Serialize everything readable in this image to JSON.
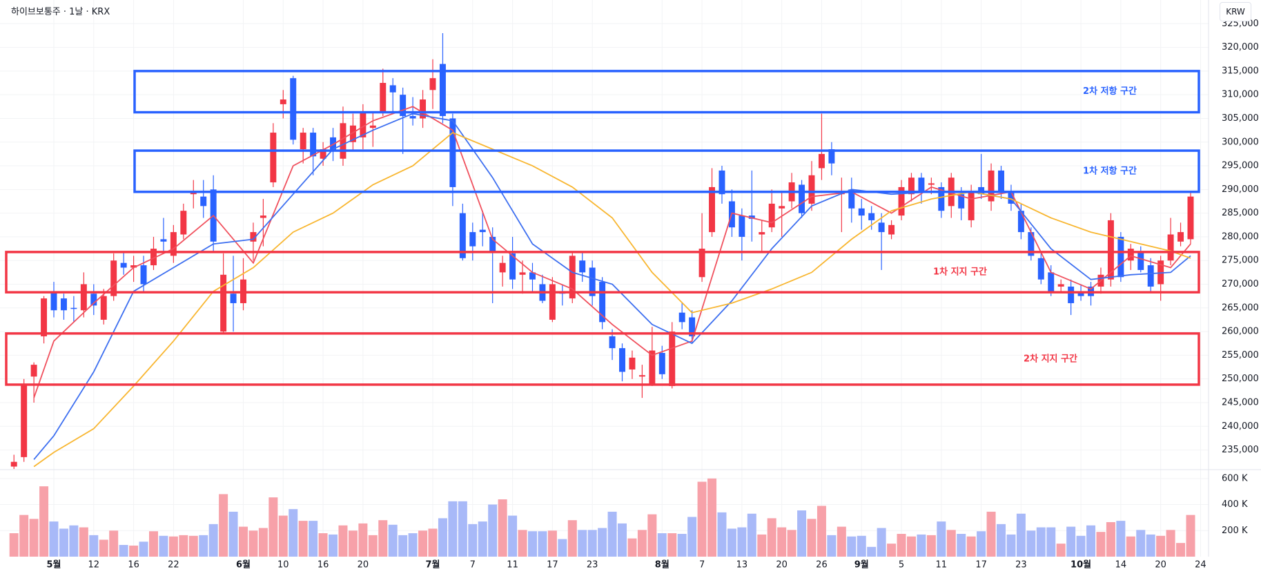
{
  "header": {
    "symbol": "하이브보통주 · 1날 · KRX",
    "currency": "KRW"
  },
  "chart_data": {
    "type": "candlestick",
    "open": [
      231500,
      233500,
      250500,
      259000,
      268500,
      267000,
      265000,
      264500,
      268000,
      262500,
      267500,
      274500,
      273500,
      274000,
      274000,
      279500,
      276000,
      280500,
      289000,
      288500,
      290000,
      260000,
      268000,
      266000,
      279000,
      284000,
      291500,
      308000,
      313500,
      298500,
      302000,
      296500,
      301000,
      296500,
      300000,
      301000,
      303000,
      306500,
      312000,
      310000,
      305500,
      305000,
      311000,
      316500,
      305000,
      285000,
      281000,
      281500,
      280000,
      272500,
      276500,
      272000,
      272500,
      270000,
      262500,
      268500,
      267000,
      275000,
      273500,
      270500,
      259000,
      256500,
      252000,
      250500,
      249000,
      255500,
      248500,
      264000,
      263000,
      271500,
      281000,
      294000,
      287500,
      284500,
      284500,
      280500,
      282000,
      286000,
      287500,
      291000,
      287000,
      294500,
      298500,
      289000,
      290000,
      286000,
      285000,
      283000,
      280500,
      284500,
      289000,
      292500,
      291000,
      290500,
      286500,
      289000,
      283500,
      290500,
      287500,
      294000,
      289500,
      285500,
      281000,
      275500,
      272500,
      269500,
      269500,
      268500,
      269500,
      269500,
      271000,
      280000,
      275000,
      277000,
      274000,
      270000,
      275000,
      279000,
      279500
    ],
    "high": [
      234000,
      250000,
      253500,
      267500,
      270500,
      268000,
      267500,
      272500,
      270000,
      269000,
      276500,
      277000,
      276000,
      276000,
      280000,
      284000,
      282500,
      287000,
      292000,
      292000,
      293000,
      276500,
      276000,
      275500,
      283000,
      288000,
      304000,
      311000,
      314000,
      303000,
      303000,
      300000,
      303000,
      307500,
      306000,
      308000,
      306500,
      315500,
      313500,
      311500,
      309500,
      311000,
      317500,
      323000,
      306000,
      287000,
      283000,
      285500,
      282000,
      276000,
      280000,
      275000,
      274500,
      272000,
      271500,
      270000,
      277000,
      277000,
      275000,
      271500,
      260500,
      257500,
      256000,
      253000,
      261000,
      257000,
      262000,
      266000,
      264500,
      285000,
      294500,
      295000,
      290000,
      286000,
      294000,
      283500,
      290000,
      289500,
      293500,
      292000,
      296000,
      306000,
      300000,
      292500,
      292500,
      288000,
      286500,
      285000,
      283500,
      292000,
      293500,
      293500,
      292500,
      291500,
      293500,
      290500,
      291000,
      297500,
      295500,
      295000,
      291000,
      287000,
      282000,
      276500,
      274000,
      271000,
      271000,
      270000,
      270500,
      273500,
      285000,
      281000,
      278500,
      278000,
      275500,
      276000,
      284000,
      283000,
      289500
    ],
    "low": [
      231000,
      232500,
      245000,
      257500,
      263000,
      262500,
      262000,
      263000,
      263500,
      261500,
      266500,
      272000,
      270500,
      268500,
      273000,
      277000,
      274500,
      279500,
      286000,
      284000,
      277000,
      259500,
      260000,
      264500,
      275000,
      278000,
      290500,
      305000,
      299500,
      295500,
      293000,
      295000,
      296000,
      295000,
      298000,
      298500,
      299000,
      305500,
      306500,
      297500,
      303500,
      303000,
      307000,
      304000,
      286500,
      275000,
      275000,
      278000,
      266000,
      269500,
      269000,
      268000,
      268500,
      266000,
      262000,
      265500,
      266000,
      270500,
      265500,
      260500,
      254000,
      249500,
      250000,
      246000,
      248500,
      250000,
      248000,
      260500,
      257500,
      270500,
      280000,
      287000,
      280000,
      275000,
      279000,
      277000,
      281000,
      280000,
      286000,
      284000,
      285500,
      292000,
      293000,
      281000,
      283000,
      281500,
      281500,
      273000,
      279500,
      283500,
      287500,
      287000,
      289000,
      284000,
      284000,
      283500,
      282000,
      288000,
      285500,
      288000,
      285500,
      279500,
      275000,
      270000,
      267500,
      268500,
      263500,
      266500,
      265500,
      268000,
      269500,
      270500,
      273000,
      272500,
      268500,
      266500,
      274000,
      278000,
      278500
    ],
    "close": [
      232500,
      249000,
      253000,
      267000,
      264500,
      264500,
      264800,
      270000,
      265500,
      267500,
      275000,
      273500,
      274000,
      270000,
      277500,
      279000,
      281000,
      285500,
      289500,
      286500,
      279000,
      272000,
      266000,
      271000,
      281000,
      284500,
      302000,
      309000,
      300500,
      302000,
      297000,
      298500,
      298000,
      304000,
      303500,
      306500,
      303500,
      312500,
      310500,
      305500,
      305000,
      309000,
      313500,
      305500,
      290500,
      275500,
      278000,
      281000,
      277000,
      274500,
      271000,
      272500,
      271000,
      266500,
      270000,
      268000,
      276000,
      272500,
      267500,
      262000,
      256500,
      251500,
      254500,
      250800,
      256000,
      251000,
      260000,
      262000,
      259000,
      277500,
      290500,
      289000,
      282000,
      280000,
      283800,
      281000,
      287000,
      286500,
      291500,
      285000,
      293000,
      297500,
      295500,
      289300,
      286000,
      284500,
      283500,
      281000,
      282500,
      290500,
      292500,
      289500,
      291300,
      285500,
      292500,
      286000,
      289500,
      289000,
      294000,
      289500,
      287000,
      281000,
      276000,
      271000,
      268500,
      270000,
      266000,
      267500,
      267500,
      272000,
      283500,
      271500,
      277500,
      273000,
      269500,
      275000,
      280500,
      281000,
      288500
    ],
    "volume": [
      180000,
      320000,
      290000,
      540000,
      270000,
      215000,
      240000,
      225000,
      165000,
      130000,
      200000,
      90000,
      85000,
      115000,
      195000,
      160000,
      155000,
      165000,
      160000,
      165000,
      250000,
      480000,
      345000,
      230000,
      200000,
      220000,
      455000,
      315000,
      365000,
      275000,
      275000,
      180000,
      170000,
      240000,
      200000,
      255000,
      165000,
      280000,
      245000,
      165000,
      180000,
      200000,
      215000,
      295000,
      425000,
      425000,
      250000,
      270000,
      400000,
      440000,
      315000,
      205000,
      195000,
      195000,
      200000,
      135000,
      280000,
      205000,
      205000,
      220000,
      345000,
      255000,
      140000,
      205000,
      325000,
      180000,
      180000,
      175000,
      305000,
      575000,
      600000,
      340000,
      215000,
      225000,
      330000,
      170000,
      295000,
      225000,
      205000,
      355000,
      290000,
      390000,
      165000,
      230000,
      155000,
      160000,
      75000,
      220000,
      100000,
      175000,
      155000,
      170000,
      165000,
      270000,
      205000,
      175000,
      155000,
      195000,
      345000,
      250000,
      170000,
      330000,
      200000,
      225000,
      225000,
      100000,
      230000,
      160000,
      240000,
      190000,
      265000,
      275000,
      155000,
      205000,
      170000,
      160000,
      205000,
      105000,
      320000
    ],
    "up_color": "#f23645",
    "down_color": "#2962ff",
    "up_volume_color": "#f7a1a9",
    "down_volume_color": "#a8b9f8",
    "lines": [
      {
        "color": "#f0505d",
        "x": [
          2,
          4,
          8,
          12,
          16,
          20,
          24,
          28,
          32,
          36,
          40,
          44,
          48,
          52,
          56,
          60,
          64,
          68,
          72,
          76,
          80,
          84,
          88,
          92,
          96,
          100,
          104,
          108,
          112,
          116,
          118
        ],
        "values": [
          246000,
          258000,
          266000,
          273500,
          277500,
          284500,
          274500,
          295000,
          299500,
          304500,
          307500,
          302500,
          279500,
          272500,
          269000,
          261500,
          255000,
          258000,
          285000,
          283000,
          288500,
          289500,
          285000,
          290500,
          288000,
          289500,
          272500,
          269000,
          276000,
          273500,
          278500
        ]
      },
      {
        "color": "#3d6ff0",
        "x": [
          2,
          4,
          8,
          12,
          16,
          20,
          24,
          28,
          32,
          36,
          40,
          44,
          48,
          52,
          56,
          60,
          64,
          68,
          72,
          76,
          80,
          84,
          88,
          92,
          96,
          100,
          104,
          108,
          112,
          116,
          118
        ],
        "values": [
          233000,
          238000,
          251500,
          268500,
          273500,
          278500,
          279500,
          289000,
          298500,
          302500,
          306000,
          304500,
          292500,
          278500,
          272500,
          270000,
          261500,
          257500,
          266500,
          277500,
          286500,
          290000,
          289000,
          289500,
          289500,
          288000,
          277500,
          271000,
          272000,
          272500,
          276000
        ]
      },
      {
        "color": "#f8b630",
        "x": [
          2,
          4,
          8,
          12,
          16,
          20,
          24,
          28,
          32,
          36,
          40,
          44,
          48,
          52,
          56,
          60,
          64,
          68,
          72,
          76,
          80,
          84,
          88,
          92,
          96,
          100,
          104,
          108,
          112,
          116,
          118
        ],
        "values": [
          231500,
          234500,
          239500,
          248500,
          258000,
          268500,
          273500,
          281000,
          285000,
          291000,
          295000,
          302000,
          298500,
          295000,
          290500,
          284000,
          272500,
          264000,
          266000,
          269000,
          272500,
          279500,
          285500,
          288000,
          289500,
          288000,
          284000,
          281000,
          279000,
          277000,
          275500
        ]
      }
    ],
    "zones": [
      {
        "label": "2차 저항 구간",
        "top": 315000,
        "bottom": 306300,
        "color": "#2962ff"
      },
      {
        "label": "1차 저항 구간",
        "top": 298200,
        "bottom": 289500,
        "color": "#2962ff"
      },
      {
        "label": "1차 지지 구간",
        "top": 276800,
        "bottom": 268300,
        "color": "#f23645"
      },
      {
        "label": "2차 지지 구간",
        "top": 259600,
        "bottom": 248800,
        "color": "#f23645"
      }
    ],
    "xlim": [
      -1.4,
      119.8
    ],
    "xticks": [
      {
        "value": 4,
        "label": "5월"
      },
      {
        "value": 8,
        "label": "12"
      },
      {
        "value": 12,
        "label": "16"
      },
      {
        "value": 16,
        "label": "22"
      },
      {
        "value": 23,
        "label": "6월"
      },
      {
        "value": 27,
        "label": "10"
      },
      {
        "value": 31,
        "label": "16"
      },
      {
        "value": 35,
        "label": "20"
      },
      {
        "value": 42,
        "label": "7월"
      },
      {
        "value": 46,
        "label": "7"
      },
      {
        "value": 50,
        "label": "11"
      },
      {
        "value": 54,
        "label": "17"
      },
      {
        "value": 58,
        "label": "23"
      },
      {
        "value": 65,
        "label": "8월"
      },
      {
        "value": 69,
        "label": "7"
      },
      {
        "value": 73,
        "label": "13"
      },
      {
        "value": 77,
        "label": "20"
      },
      {
        "value": 81,
        "label": "26"
      },
      {
        "value": 85,
        "label": "9월"
      },
      {
        "value": 89,
        "label": "5"
      },
      {
        "value": 93,
        "label": "11"
      },
      {
        "value": 97,
        "label": "17"
      },
      {
        "value": 101,
        "label": "23"
      },
      {
        "value": 107,
        "label": "10월"
      },
      {
        "value": 111,
        "label": "14"
      },
      {
        "value": 115,
        "label": "20"
      },
      {
        "value": 119,
        "label": "24"
      }
    ],
    "ylim": [
      231000,
      330000
    ],
    "yticks": [
      {
        "value": 235000,
        "label": "235,000"
      },
      {
        "value": 240000,
        "label": "240,000"
      },
      {
        "value": 245000,
        "label": "245,000"
      },
      {
        "value": 250000,
        "label": "250,000"
      },
      {
        "value": 255000,
        "label": "255,000"
      },
      {
        "value": 260000,
        "label": "260,000"
      },
      {
        "value": 265000,
        "label": "265,000"
      },
      {
        "value": 270000,
        "label": "270,000"
      },
      {
        "value": 275000,
        "label": "275,000"
      },
      {
        "value": 280000,
        "label": "280,000"
      },
      {
        "value": 285000,
        "label": "285,000"
      },
      {
        "value": 290000,
        "label": "290,000"
      },
      {
        "value": 295000,
        "label": "295,000"
      },
      {
        "value": 300000,
        "label": "300,000"
      },
      {
        "value": 305000,
        "label": "305,000"
      },
      {
        "value": 310000,
        "label": "310,000"
      },
      {
        "value": 315000,
        "label": "315,000"
      },
      {
        "value": 320000,
        "label": "320,000"
      },
      {
        "value": 325000,
        "label": "325,000"
      }
    ],
    "volume_ylim": [
      0,
      660000
    ],
    "volume_yticks": [
      {
        "value": 200000,
        "label": "200 K"
      },
      {
        "value": 400000,
        "label": "400 K"
      },
      {
        "value": 600000,
        "label": "600 K"
      }
    ],
    "grid": true
  }
}
